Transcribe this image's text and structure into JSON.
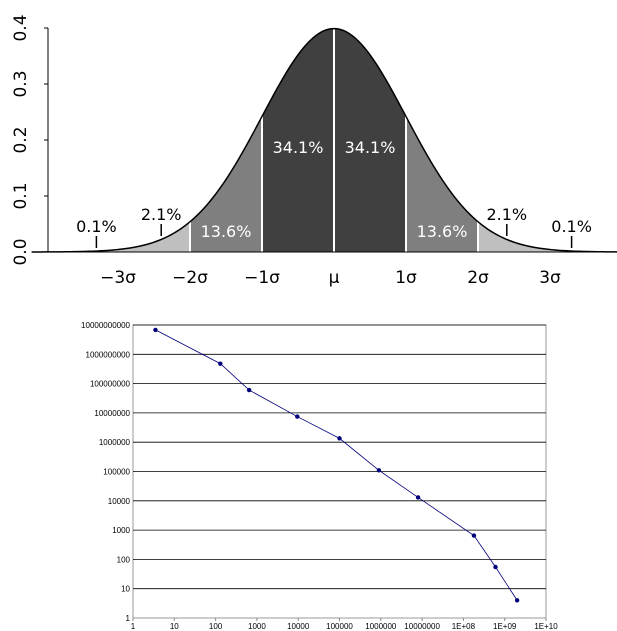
{
  "chart_data": [
    {
      "type": "area",
      "title": "",
      "xlabel": "",
      "ylabel": "",
      "x_ticks": [
        "−3σ",
        "−2σ",
        "−1σ",
        "μ",
        "1σ",
        "2σ",
        "3σ"
      ],
      "y_ticks": [
        "0.0",
        "0.1",
        "0.2",
        "0.3",
        "0.4"
      ],
      "ylim": [
        0,
        0.4
      ],
      "xlim": [
        -4.2,
        4.2
      ],
      "series": [
        {
          "x_range": [
            -1,
            0
          ],
          "label": "34.1%",
          "color": "#404040"
        },
        {
          "x_range": [
            0,
            1
          ],
          "label": "34.1%",
          "color": "#404040"
        },
        {
          "x_range": [
            -2,
            -1
          ],
          "label": "13.6%",
          "color": "#7f7f7f"
        },
        {
          "x_range": [
            1,
            2
          ],
          "label": "13.6%",
          "color": "#7f7f7f"
        },
        {
          "x_range": [
            -3,
            -2
          ],
          "label": "2.1%",
          "color": "#bfbfbf"
        },
        {
          "x_range": [
            2,
            3
          ],
          "label": "2.1%",
          "color": "#bfbfbf"
        },
        {
          "x_range": [
            -4.2,
            -3
          ],
          "label": "0.1%",
          "color": "#bfbfbf"
        },
        {
          "x_range": [
            3,
            4.2
          ],
          "label": "0.1%",
          "color": "#bfbfbf"
        }
      ],
      "grid": false
    },
    {
      "type": "line",
      "title": "",
      "xlabel": "",
      "ylabel": "",
      "x_scale": "log",
      "y_scale": "log",
      "xlim": [
        1,
        10000000000.0
      ],
      "ylim": [
        1,
        10000000000.0
      ],
      "x_ticks": [
        "1",
        "10",
        "100",
        "1000",
        "10000",
        "100000",
        "1000000",
        "10000000",
        "1E+08",
        "1E+09",
        "1E+10"
      ],
      "y_ticks": [
        "1",
        "10",
        "100",
        "1000",
        "10000",
        "100000",
        "1000000",
        "10000000",
        "100000000",
        "1000000000",
        "10000000000"
      ],
      "grid": true,
      "line_color": "#00007a",
      "points": [
        {
          "x": 3.5,
          "y": 6800000000
        },
        {
          "x": 130,
          "y": 480000000
        },
        {
          "x": 650,
          "y": 60000000
        },
        {
          "x": 9500,
          "y": 7500000
        },
        {
          "x": 100000,
          "y": 1350000
        },
        {
          "x": 900000,
          "y": 110000
        },
        {
          "x": 8000000,
          "y": 13000
        },
        {
          "x": 180000000,
          "y": 650
        },
        {
          "x": 600000000,
          "y": 55
        },
        {
          "x": 2000000000,
          "y": 4
        }
      ]
    }
  ]
}
